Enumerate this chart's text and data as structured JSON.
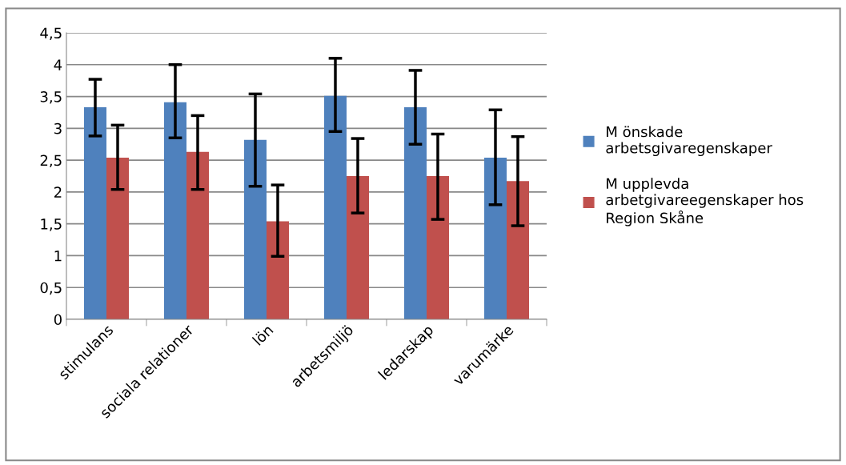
{
  "chart_data": {
    "type": "bar",
    "categories": [
      "stimulans",
      "sociala relationer",
      "lön",
      "arbetsmiljö",
      "ledarskap",
      "varumärke"
    ],
    "series": [
      {
        "name": "M önskade arbetsgivaregenskaper",
        "color": "#4f81bd",
        "values": [
          3.33,
          3.41,
          2.82,
          3.51,
          3.33,
          2.54
        ],
        "errors": [
          [
            2.88,
            3.77
          ],
          [
            2.85,
            4.0
          ],
          [
            2.09,
            3.54
          ],
          [
            2.95,
            4.1
          ],
          [
            2.75,
            3.91
          ],
          [
            1.8,
            3.29
          ]
        ]
      },
      {
        "name": "M upplevda arbetgivareegenskaper hos Region Skåne",
        "color": "#c0504d",
        "values": [
          2.54,
          2.63,
          1.54,
          2.25,
          2.25,
          2.17
        ],
        "errors": [
          [
            2.04,
            3.05
          ],
          [
            2.04,
            3.2
          ],
          [
            0.99,
            2.11
          ],
          [
            1.67,
            2.84
          ],
          [
            1.57,
            2.91
          ],
          [
            1.47,
            2.87
          ]
        ]
      }
    ],
    "ylim": [
      0,
      4.5
    ],
    "yticks": [
      0,
      {
        "value": 0.5,
        "label": "0,5"
      },
      1,
      {
        "value": 1.5,
        "label": "1,5"
      },
      2,
      {
        "value": 2.5,
        "label": "2,5"
      },
      3,
      {
        "value": 3.5,
        "label": "3,5"
      },
      4,
      {
        "value": 4.5,
        "label": "4,5"
      }
    ],
    "grid": "y",
    "legend": "right"
  }
}
